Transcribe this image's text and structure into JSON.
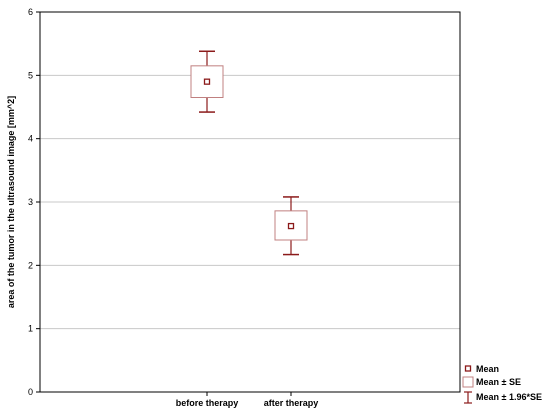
{
  "chart_data": {
    "type": "box",
    "title": "",
    "xlabel": "",
    "ylabel": "area of the tumor in the ultrasound image  [mm^2]",
    "ylim": [
      0,
      6
    ],
    "yticks": [
      "0",
      "1",
      "2",
      "3",
      "4",
      "5",
      "6"
    ],
    "categories": [
      "before therapy",
      "after therapy"
    ],
    "series": [
      {
        "category": "before therapy",
        "mean": 4.9,
        "se_low": 4.65,
        "se_high": 5.15,
        "ci_low": 4.42,
        "ci_high": 5.38
      },
      {
        "category": "after therapy",
        "mean": 2.62,
        "se_low": 2.4,
        "se_high": 2.86,
        "ci_low": 2.17,
        "ci_high": 3.08
      }
    ],
    "legend": {
      "position": "bottom-right",
      "items": [
        "Mean",
        "Mean ± SE",
        "Mean ± 1.96*SE"
      ]
    },
    "grid": "horizontal",
    "colors": {
      "mark": "#8b1a1a",
      "box": "#c08080",
      "grid": "#c8c8c8",
      "frame": "#000000"
    }
  }
}
